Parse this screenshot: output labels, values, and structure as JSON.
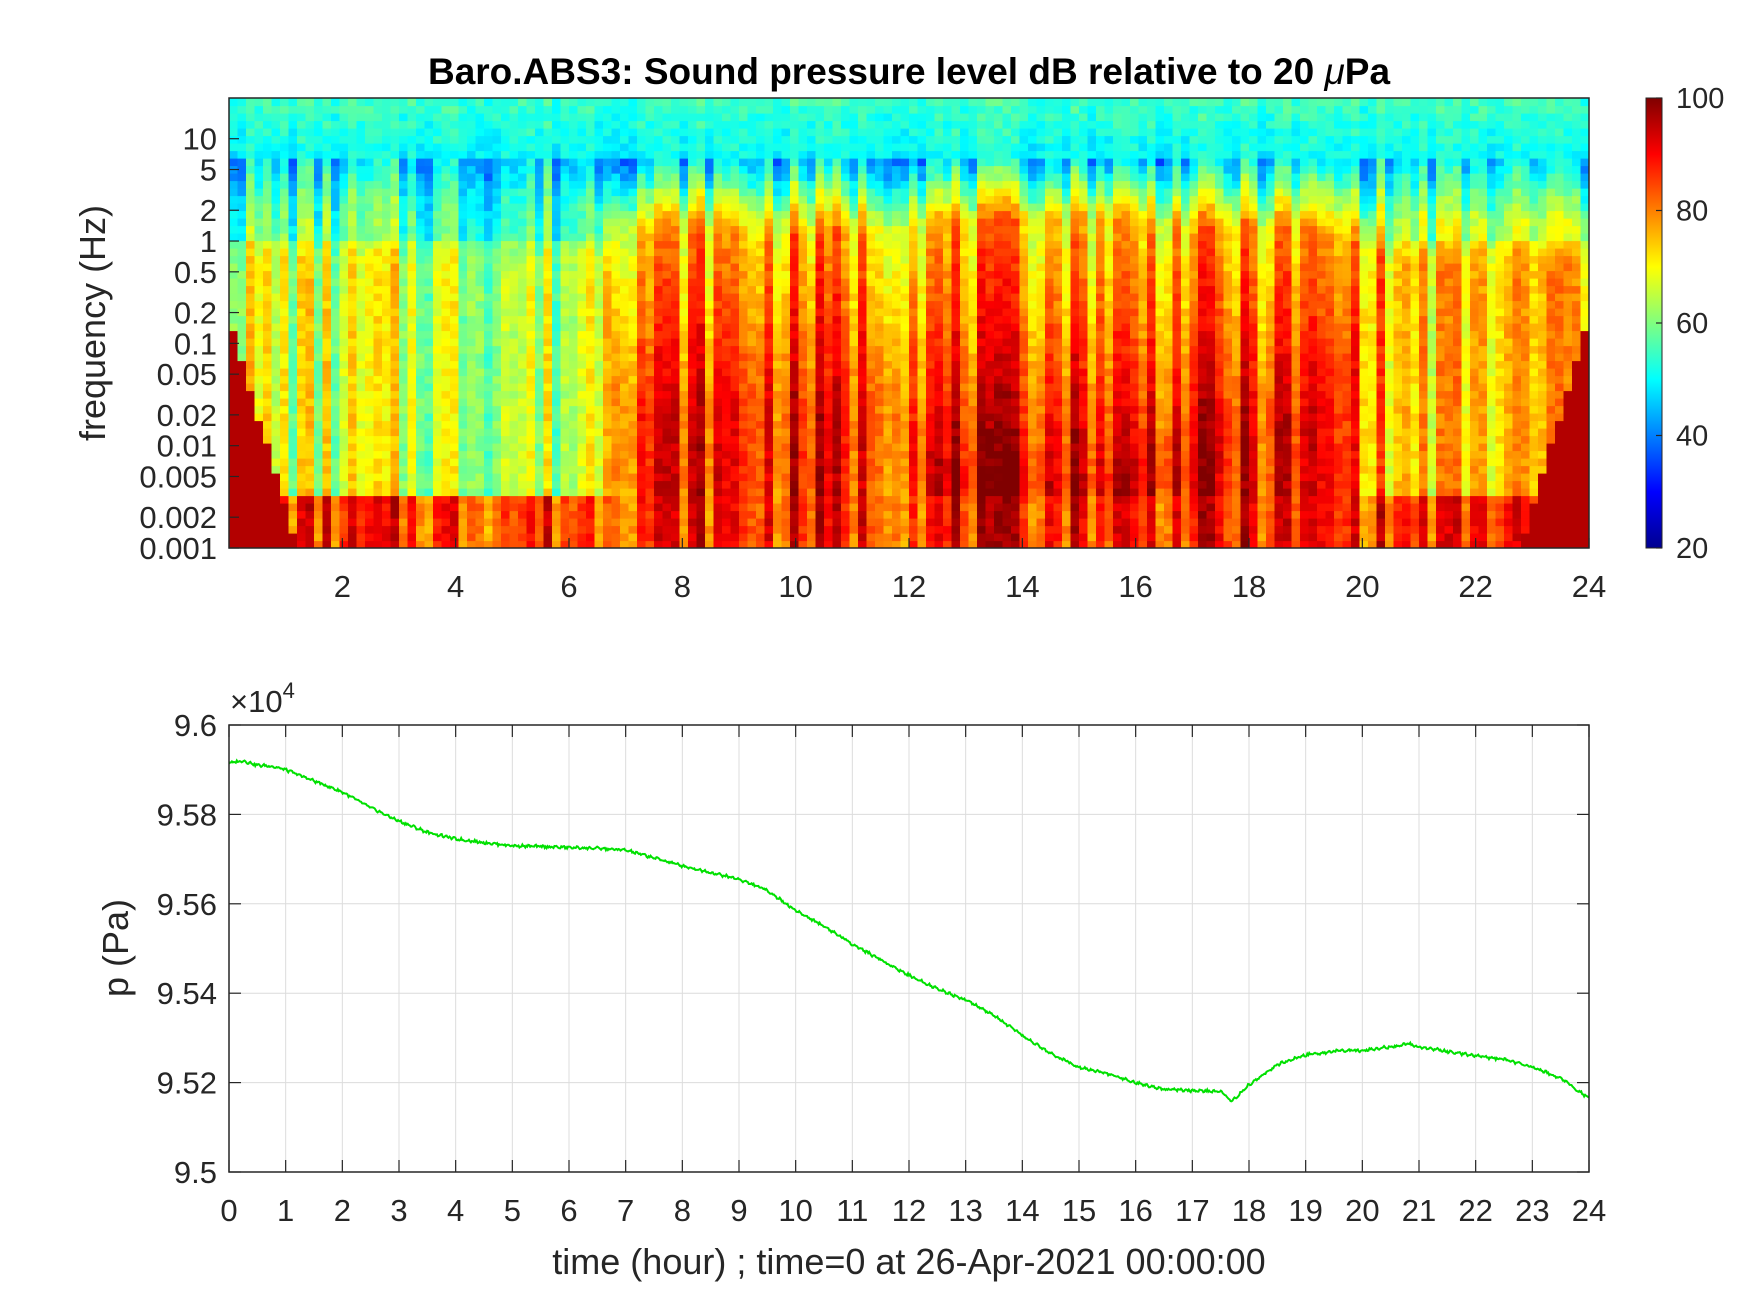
{
  "chart_data": [
    {
      "type": "heatmap",
      "title": "Baro.ABS3: Sound pressure level dB relative to 20 μPa",
      "title_prefix": "Baro.ABS3: Sound pressure level dB relative to 20 ",
      "title_greek": "μ",
      "title_suffix": "Pa",
      "xlabel": "",
      "ylabel": "frequency (Hz)",
      "xlim": [
        0,
        24
      ],
      "x_ticks": [
        2,
        4,
        6,
        8,
        10,
        12,
        14,
        16,
        18,
        20,
        22,
        24
      ],
      "x_tick_labels": [
        "2",
        "4",
        "6",
        "8",
        "10",
        "12",
        "14",
        "16",
        "18",
        "20",
        "22",
        "24"
      ],
      "y_scale": "log",
      "ylim": [
        0.001,
        25
      ],
      "y_ticks": [
        0.001,
        0.002,
        0.005,
        0.01,
        0.02,
        0.05,
        0.1,
        0.2,
        0.5,
        1,
        2,
        5,
        10
      ],
      "y_tick_labels": [
        "0.001",
        "0.002",
        "0.005",
        "0.01",
        "0.02",
        "0.05",
        "0.1",
        "0.2",
        "0.5",
        "1",
        "2",
        "5",
        "10"
      ],
      "colormap": "jet",
      "color_range": [
        20,
        100
      ],
      "colorbar_ticks": [
        20,
        40,
        60,
        80,
        100
      ],
      "colorbar_tick_labels": [
        "20",
        "40",
        "60",
        "80",
        "100"
      ],
      "colorbar_location": "right",
      "activity_profile": {
        "hours": [
          0,
          1,
          2,
          3,
          4,
          5,
          5.8,
          6.4,
          6.8,
          7.5,
          8.5,
          9.5,
          10.5,
          11.5,
          12.5,
          13.5,
          14.5,
          15.2,
          16,
          17,
          18,
          19,
          19.8,
          20.5,
          21.5,
          22.5,
          23.5,
          24
        ],
        "activity": [
          0.45,
          0.42,
          0.4,
          0.4,
          0.38,
          0.4,
          0.35,
          0.45,
          0.8,
          0.85,
          0.85,
          0.82,
          0.85,
          0.8,
          0.92,
          0.95,
          1.0,
          1.0,
          0.95,
          0.88,
          0.85,
          0.85,
          0.8,
          0.55,
          0.55,
          0.55,
          0.6,
          0.6
        ]
      }
    },
    {
      "type": "line",
      "title": "",
      "xlabel": "time (hour) ; time=0 at 26-Apr-2021 00:00:00",
      "ylabel": "p (Pa)",
      "xlim": [
        0,
        24
      ],
      "ylim": [
        95000,
        96000
      ],
      "x_ticks": [
        0,
        1,
        2,
        3,
        4,
        5,
        6,
        7,
        8,
        9,
        10,
        11,
        12,
        13,
        14,
        15,
        16,
        17,
        18,
        19,
        20,
        21,
        22,
        23,
        24
      ],
      "x_tick_labels": [
        "0",
        "1",
        "2",
        "3",
        "4",
        "5",
        "6",
        "7",
        "8",
        "9",
        "10",
        "11",
        "12",
        "13",
        "14",
        "15",
        "16",
        "17",
        "18",
        "19",
        "20",
        "21",
        "22",
        "23",
        "24"
      ],
      "y_ticks": [
        95000,
        95200,
        95400,
        95600,
        95800,
        96000
      ],
      "y_tick_labels": [
        "9.5",
        "9.52",
        "9.54",
        "9.56",
        "9.58",
        "9.6"
      ],
      "y_exponent_label": "×10",
      "y_exponent_power": "4",
      "grid": true,
      "line_color": "#00e000",
      "x": [
        0,
        0.25,
        0.5,
        0.75,
        1,
        1.5,
        2,
        2.5,
        3,
        3.5,
        4,
        4.5,
        5,
        5.5,
        6,
        6.5,
        7,
        7.5,
        8,
        8.5,
        9,
        9.5,
        10,
        10.5,
        11,
        11.5,
        12,
        12.5,
        13,
        13.5,
        14,
        14.5,
        15,
        15.5,
        16,
        16.5,
        17,
        17.5,
        17.7,
        18,
        18.5,
        19,
        19.5,
        20,
        20.5,
        20.8,
        21,
        21.5,
        22,
        22.5,
        23,
        23.5,
        24
      ],
      "y": [
        95915,
        95920,
        95910,
        95908,
        95900,
        95875,
        95850,
        95815,
        95785,
        95760,
        95745,
        95737,
        95730,
        95728,
        95726,
        95724,
        95720,
        95703,
        95685,
        95670,
        95655,
        95630,
        95585,
        95550,
        95510,
        95475,
        95440,
        95410,
        95385,
        95350,
        95305,
        95265,
        95235,
        95220,
        95200,
        95185,
        95182,
        95180,
        95158,
        95195,
        95240,
        95262,
        95270,
        95272,
        95280,
        95287,
        95280,
        95270,
        95260,
        95252,
        95235,
        95210,
        95165
      ]
    }
  ]
}
